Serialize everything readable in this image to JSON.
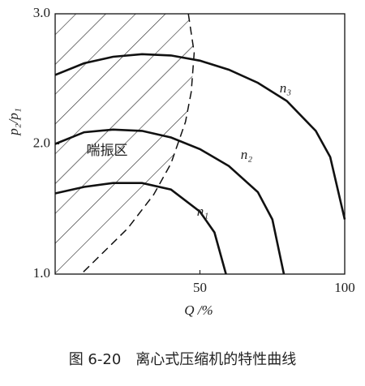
{
  "chart_data": {
    "type": "line",
    "caption": "图 6-20　离心式压缩机的特性曲线",
    "xlabel": "Q /%",
    "ylabel": "p₂/p₁",
    "annotation": "喘振区",
    "xlim": [
      0,
      100
    ],
    "ylim": [
      1,
      3
    ],
    "xticks": [
      50,
      100
    ],
    "yticks": [
      {
        "value": 1,
        "label": "1.0"
      },
      {
        "value": 2,
        "label": "2.0"
      },
      {
        "value": 3,
        "label": "3.0"
      }
    ],
    "series": [
      {
        "name": "n₁",
        "color": "#111111",
        "x": [
          0,
          10,
          20,
          30,
          40,
          50,
          55,
          59
        ],
        "values": [
          1.62,
          1.67,
          1.7,
          1.7,
          1.65,
          1.48,
          1.32,
          1.0
        ]
      },
      {
        "name": "n₂",
        "color": "#111111",
        "x": [
          0,
          10,
          20,
          30,
          40,
          50,
          60,
          70,
          75,
          79
        ],
        "values": [
          2.0,
          2.09,
          2.11,
          2.1,
          2.05,
          1.96,
          1.83,
          1.63,
          1.42,
          1.0
        ]
      },
      {
        "name": "n₃",
        "color": "#111111",
        "x": [
          0,
          10,
          20,
          30,
          40,
          50,
          60,
          70,
          80,
          90,
          95,
          100
        ],
        "values": [
          2.53,
          2.62,
          2.67,
          2.69,
          2.68,
          2.64,
          2.57,
          2.47,
          2.33,
          2.1,
          1.9,
          1.42
        ]
      }
    ],
    "surge_line": {
      "color": "#111111",
      "dashed": true,
      "hatched": true,
      "x": [
        46,
        48,
        47,
        45,
        40,
        34,
        25,
        9
      ],
      "values": [
        3.0,
        2.7,
        2.4,
        2.17,
        1.85,
        1.61,
        1.35,
        1.0
      ]
    }
  }
}
